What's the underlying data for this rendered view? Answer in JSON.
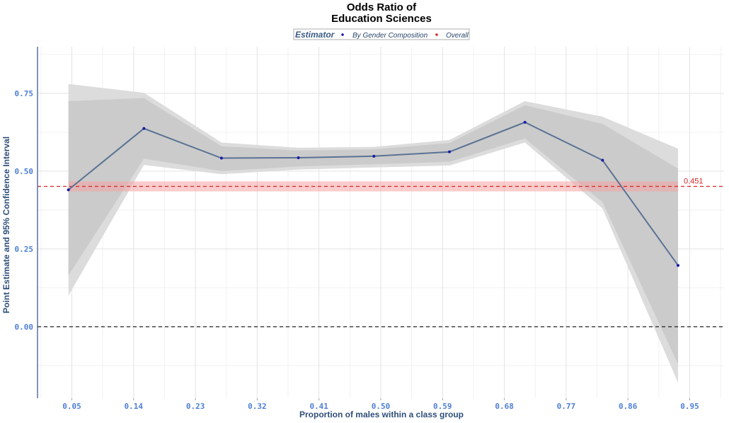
{
  "chart_data": {
    "type": "line",
    "title_lines": [
      "Odds Ratio of",
      "Education Sciences"
    ],
    "xlabel": "Proportion of males within a class group",
    "ylabel": "Point Estimate and 95% Confidence Interval",
    "xlim": [
      0.0,
      1.0
    ],
    "ylim": [
      -0.23,
      0.9
    ],
    "x_ticks": [
      0.05,
      0.14,
      0.23,
      0.32,
      0.41,
      0.5,
      0.59,
      0.68,
      0.77,
      0.86,
      0.95
    ],
    "x_tick_labels": [
      "0.05",
      "0.14",
      "0.23",
      "0.32",
      "0.41",
      "0.50",
      "0.59",
      "0.68",
      "0.77",
      "0.86",
      "0.95"
    ],
    "y_ticks": [
      0.0,
      0.25,
      0.5,
      0.75
    ],
    "y_tick_labels": [
      "0.00",
      "0.25",
      "0.50",
      "0.75"
    ],
    "grid": true,
    "legend": {
      "title": "Estimator",
      "position": "top",
      "entries": [
        {
          "label": "By Gender Composition",
          "color": "#1a1aa8"
        },
        {
          "label": "Overall",
          "color": "#d62728"
        }
      ]
    },
    "series": [
      {
        "name": "By Gender Composition",
        "color": "#5a7394",
        "point_color": "#1a1aa8",
        "x": [
          0.045,
          0.155,
          0.268,
          0.38,
          0.49,
          0.6,
          0.71,
          0.823,
          0.933
        ],
        "y": [
          0.44,
          0.637,
          0.542,
          0.543,
          0.548,
          0.562,
          0.657,
          0.535,
          0.197
        ],
        "ci95_lower": [
          0.1,
          0.52,
          0.49,
          0.505,
          0.512,
          0.518,
          0.592,
          0.38,
          -0.18
        ],
        "ci95_upper": [
          0.78,
          0.752,
          0.592,
          0.575,
          0.578,
          0.6,
          0.725,
          0.675,
          0.572
        ],
        "ci90_lower": [
          0.165,
          0.54,
          0.5,
          0.515,
          0.522,
          0.53,
          0.605,
          0.4,
          -0.12
        ],
        "ci90_upper": [
          0.725,
          0.735,
          0.58,
          0.566,
          0.57,
          0.59,
          0.712,
          0.652,
          0.508
        ]
      }
    ],
    "overall": {
      "name": "Overall",
      "value": 0.451,
      "label": "0.451",
      "band": [
        0.435,
        0.467
      ],
      "color": "#d62728",
      "band_x": [
        0.045,
        0.933
      ]
    },
    "reference_line": {
      "y": 0.0,
      "color": "#222222"
    }
  }
}
